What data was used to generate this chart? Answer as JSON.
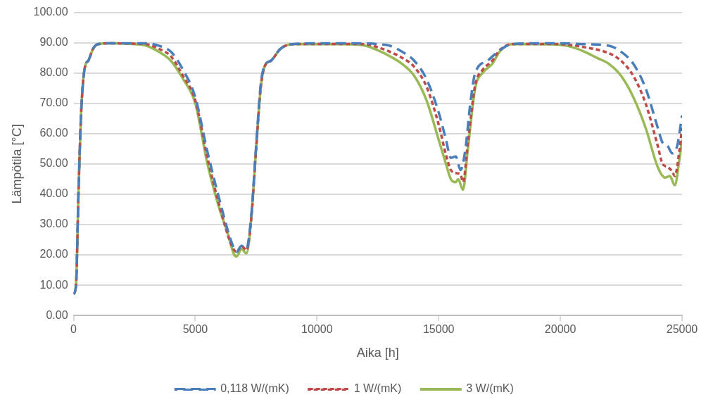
{
  "chart_data": {
    "type": "line",
    "xlabel": "Aika [h]",
    "ylabel": "Lämpötila [°C]",
    "xlim": [
      0,
      25000
    ],
    "xticks": [
      0,
      5000,
      10000,
      15000,
      20000,
      25000
    ],
    "ylim": [
      0,
      100
    ],
    "yticks": [
      {
        "value": 0,
        "label": "0.00"
      },
      {
        "value": 10,
        "label": "10.00"
      },
      {
        "value": 20,
        "label": "20.00"
      },
      {
        "value": 30,
        "label": "30.00"
      },
      {
        "value": 40,
        "label": "40.00"
      },
      {
        "value": 50,
        "label": "50.00"
      },
      {
        "value": 60,
        "label": "60.00"
      },
      {
        "value": 70,
        "label": "70.00"
      },
      {
        "value": 80,
        "label": "80.00"
      },
      {
        "value": 90,
        "label": "90.00"
      },
      {
        "value": 100,
        "label": "100.00"
      }
    ],
    "grid": "y",
    "legend": "bottom",
    "marker": "none",
    "series": [
      {
        "name": "0,118 W/(mK)",
        "color": "#4a7ebb",
        "line_style": "dashed",
        "x": [
          0,
          100,
          200,
          300,
          400,
          500,
          600,
          800,
          1000,
          1500,
          2500,
          3000,
          3500,
          4000,
          4500,
          5000,
          5500,
          6000,
          6500,
          6700,
          6900,
          7100,
          7300,
          7500,
          7700,
          7900,
          8100,
          8500,
          9000,
          10000,
          11000,
          12000,
          12500,
          13000,
          13500,
          14000,
          14500,
          15000,
          15300,
          15500,
          15700,
          15900,
          16100,
          16300,
          16500,
          17000,
          17500,
          18000,
          19000,
          20000,
          21000,
          22000,
          22500,
          23000,
          23500,
          24000,
          24200,
          24400,
          24600,
          24800,
          25000
        ],
        "values": [
          7,
          10,
          40,
          65,
          78,
          83,
          84,
          88,
          89.5,
          89.8,
          89.8,
          89.8,
          89,
          87,
          81,
          72,
          54,
          38,
          24,
          21,
          23,
          22,
          33,
          56,
          77,
          83,
          84,
          88,
          89.5,
          89.8,
          89.8,
          89.8,
          89.5,
          89,
          87,
          84,
          78,
          67,
          58,
          52,
          52.5,
          48,
          55,
          70,
          80,
          84,
          87.5,
          89.5,
          89.8,
          89.8,
          89.5,
          89,
          87,
          83,
          75,
          62,
          57,
          56,
          53.5,
          56,
          66
        ]
      },
      {
        "name": "1 W/(mK)",
        "color": "#be4b48",
        "line_style": "dotted",
        "x": [
          0,
          100,
          200,
          300,
          400,
          500,
          600,
          800,
          1000,
          1500,
          2500,
          3000,
          3500,
          4000,
          4500,
          5000,
          5500,
          6000,
          6500,
          6700,
          6900,
          7100,
          7300,
          7500,
          7700,
          7900,
          8100,
          8500,
          9000,
          10000,
          11000,
          12000,
          12500,
          13000,
          13500,
          14000,
          14500,
          15000,
          15300,
          15500,
          15700,
          15900,
          16000,
          16200,
          16500,
          16800,
          17200,
          17500,
          18000,
          19000,
          20000,
          21000,
          22000,
          22500,
          23000,
          23500,
          24000,
          24200,
          24400,
          24600,
          24700,
          24900,
          25000
        ],
        "values": [
          7,
          10,
          40,
          65,
          78,
          83,
          84,
          88,
          89.5,
          89.8,
          89.7,
          89.5,
          88,
          85.5,
          79,
          71,
          52,
          36,
          23,
          21,
          23,
          21.5,
          32,
          55,
          76,
          83,
          84,
          88,
          89.5,
          89.6,
          89.6,
          89.5,
          88.5,
          87,
          85,
          82,
          75.5,
          63,
          53,
          48,
          47,
          46.5,
          44,
          57,
          76,
          81,
          84,
          87.5,
          89.5,
          89.6,
          89.5,
          88.5,
          86.5,
          84,
          79,
          70,
          56,
          50,
          49,
          47.5,
          46,
          55,
          62
        ]
      },
      {
        "name": "3 W/(mK)",
        "color": "#98b954",
        "line_style": "solid",
        "x": [
          0,
          100,
          200,
          300,
          400,
          500,
          600,
          800,
          1000,
          1500,
          2500,
          3000,
          3500,
          4000,
          4500,
          5000,
          5500,
          6000,
          6300,
          6600,
          6700,
          6900,
          7100,
          7300,
          7500,
          7700,
          7900,
          8100,
          8500,
          9000,
          10000,
          11000,
          12000,
          12500,
          13000,
          13500,
          14000,
          14500,
          15000,
          15300,
          15500,
          15700,
          15800,
          16000,
          16200,
          16500,
          16800,
          17200,
          17500,
          18000,
          19000,
          20000,
          20500,
          21000,
          21500,
          22000,
          22500,
          23000,
          23500,
          24000,
          24300,
          24500,
          24700,
          24900,
          25000
        ],
        "values": [
          7,
          10,
          40,
          65,
          78,
          83,
          84,
          88,
          89.5,
          89.8,
          89.5,
          89,
          87,
          84,
          78,
          70,
          50,
          35,
          28,
          20,
          19.5,
          22,
          20.5,
          32,
          55,
          76,
          83,
          84,
          88,
          89.5,
          89.5,
          89.5,
          89,
          87.5,
          85.5,
          83,
          79,
          71,
          58,
          50,
          45,
          44,
          45,
          41.5,
          55,
          75,
          80,
          83,
          87,
          89.5,
          89.5,
          89.3,
          88.5,
          87,
          85,
          83,
          79,
          72,
          62,
          49,
          45.5,
          46,
          43,
          52,
          58
        ]
      }
    ]
  }
}
